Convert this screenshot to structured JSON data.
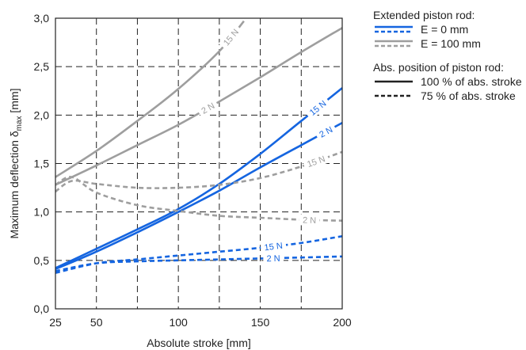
{
  "chart_data": {
    "type": "line",
    "xlabel": "Absolute stroke [mm]",
    "ylabel_main": "Maximum deflection δ",
    "ylabel_sub": "max",
    "ylabel_unit": " [mm]",
    "xlim": [
      25,
      200
    ],
    "ylim": [
      0.0,
      3.0
    ],
    "xticks": [
      25,
      50,
      100,
      150,
      200
    ],
    "xtick_labels": [
      "25",
      "50",
      "100",
      "150",
      "200"
    ],
    "xgrid": [
      50,
      75,
      100,
      125,
      150,
      175
    ],
    "yticks": [
      0.0,
      0.5,
      1.0,
      1.5,
      2.0,
      2.5,
      3.0
    ],
    "ytick_labels": [
      "0,0",
      "0,5",
      "1,0",
      "1,5",
      "2,0",
      "2,5",
      "3,0"
    ],
    "grid": "dashed",
    "colors": {
      "blue": "#1565e0",
      "gray": "#9e9e9e"
    },
    "series": [
      {
        "label": "15 N",
        "color": "gray",
        "style": "solid",
        "x": [
          25,
          50,
          75,
          100,
          125,
          140
        ],
        "y": [
          1.36,
          1.63,
          1.94,
          2.27,
          2.66,
          2.97
        ],
        "label_at": 132
      },
      {
        "label": "2 N",
        "color": "gray",
        "style": "solid",
        "x": [
          25,
          50,
          75,
          100,
          125,
          150,
          175,
          200
        ],
        "y": [
          1.28,
          1.48,
          1.69,
          1.9,
          2.14,
          2.39,
          2.65,
          2.9
        ],
        "label_at": 118
      },
      {
        "label": "15 N",
        "color": "blue",
        "style": "solid",
        "x": [
          25,
          50,
          75,
          100,
          125,
          150,
          175,
          200
        ],
        "y": [
          0.42,
          0.62,
          0.82,
          1.03,
          1.29,
          1.6,
          1.94,
          2.28
        ],
        "label_at": 185
      },
      {
        "label": "2 N",
        "color": "blue",
        "style": "solid",
        "x": [
          25,
          50,
          75,
          100,
          125,
          150,
          175,
          200
        ],
        "y": [
          0.41,
          0.59,
          0.79,
          1.0,
          1.22,
          1.46,
          1.69,
          1.92
        ],
        "label_at": 190
      },
      {
        "label": "15 N",
        "color": "gray",
        "style": "dashed",
        "x": [
          25,
          35,
          50,
          75,
          100,
          125,
          150,
          175,
          200
        ],
        "y": [
          1.21,
          1.32,
          1.29,
          1.25,
          1.25,
          1.28,
          1.35,
          1.47,
          1.62
        ],
        "label_at": 184
      },
      {
        "label": "2 N",
        "color": "gray",
        "style": "dashed",
        "x": [
          25,
          35,
          50,
          75,
          100,
          125,
          150,
          175,
          200
        ],
        "y": [
          1.28,
          1.36,
          1.2,
          1.07,
          1.01,
          0.96,
          0.94,
          0.92,
          0.91
        ],
        "label_at": 180
      },
      {
        "label": "15 N",
        "color": "blue",
        "style": "dashed",
        "x": [
          25,
          50,
          75,
          100,
          125,
          150,
          175,
          200
        ],
        "y": [
          0.37,
          0.47,
          0.51,
          0.55,
          0.59,
          0.63,
          0.68,
          0.75
        ],
        "label_at": 158
      },
      {
        "label": "2 N",
        "color": "blue",
        "style": "dashed",
        "x": [
          25,
          50,
          75,
          100,
          125,
          150,
          175,
          200
        ],
        "y": [
          0.39,
          0.47,
          0.49,
          0.5,
          0.51,
          0.52,
          0.53,
          0.54
        ],
        "label_at": 158
      }
    ],
    "legend": {
      "title1": "Extended piston rod:",
      "items1": [
        {
          "label": "E = 0 mm",
          "color": "blue"
        },
        {
          "label": "E = 100 mm",
          "color": "gray"
        }
      ],
      "title2": "Abs. position of piston rod:",
      "items2": [
        {
          "label": "100 % of abs. stroke",
          "style": "solid"
        },
        {
          "label": "75 % of abs. stroke",
          "style": "dashed"
        }
      ],
      "placement": "right"
    }
  }
}
